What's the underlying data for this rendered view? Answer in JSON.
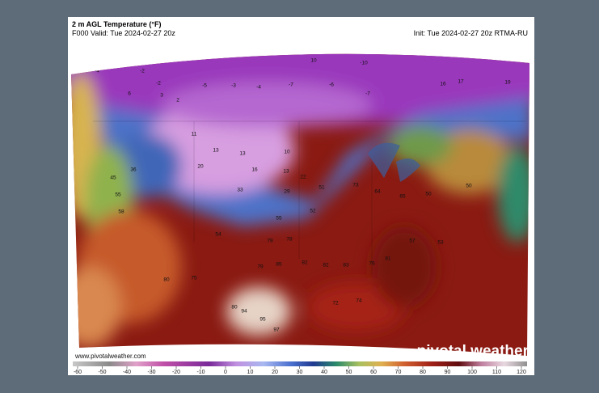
{
  "header": {
    "title": "2 m AGL Temperature (°F)",
    "valid": "F000 Valid: Tue 2024-02-27 20z",
    "init": "Init: Tue 2024-02-27 20z RTMA-RU"
  },
  "map_labels": [
    "-4",
    "-2",
    "-2",
    "6",
    "3",
    "2",
    "-5",
    "-3",
    "-4",
    "-7",
    "-6",
    "-7",
    "10",
    "-10",
    "16",
    "17",
    "19",
    "11",
    "13",
    "13",
    "10",
    "16",
    "13",
    "22",
    "29",
    "33",
    "20",
    "36",
    "45",
    "55",
    "58",
    "51",
    "73",
    "64",
    "65",
    "50",
    "50",
    "52",
    "55",
    "78",
    "79",
    "79",
    "85",
    "82",
    "82",
    "83",
    "76",
    "81",
    "57",
    "53",
    "94",
    "95",
    "97",
    "72",
    "74",
    "54",
    "75",
    "80",
    "80"
  ],
  "footer": {
    "url": "www.pivotalweather.com",
    "brand": "pivotal weather"
  },
  "colorbar": {
    "ticks": [
      -60,
      -50,
      -40,
      -30,
      -20,
      -10,
      0,
      10,
      20,
      30,
      40,
      50,
      60,
      70,
      80,
      90,
      100,
      110,
      120
    ]
  }
}
